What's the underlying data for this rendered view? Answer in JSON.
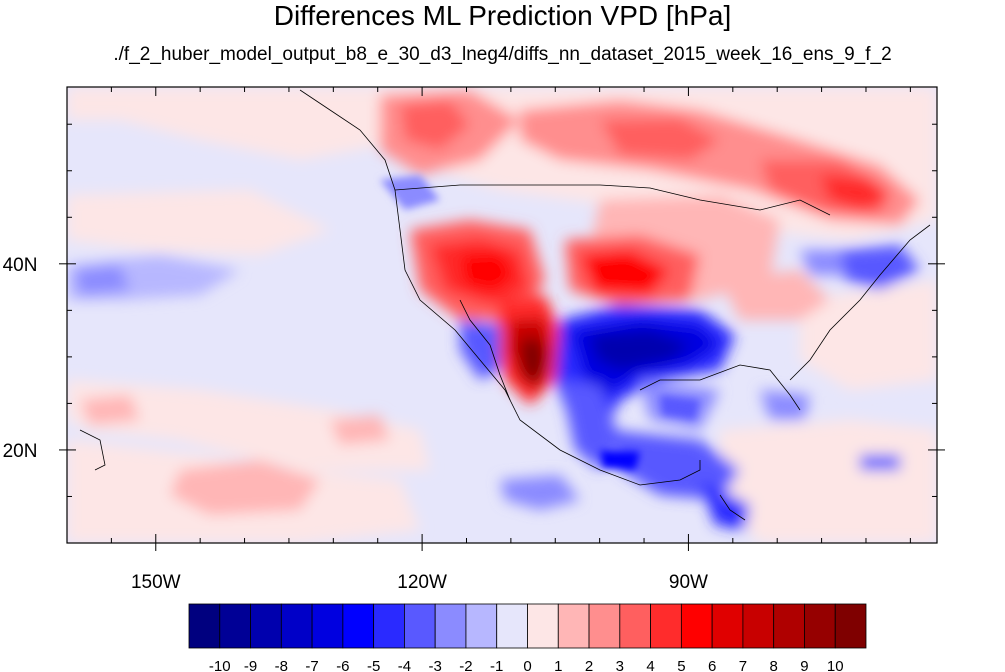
{
  "title": "Differences ML Prediction VPD [hPa]",
  "subtitle": "./f_2_huber_model_output_b8_e_30_d3_lneg4/diffs_nn_dataset_2015_week_16_ens_9_f_2",
  "map": {
    "lon_range": [
      -160,
      -62
    ],
    "lat_range": [
      10,
      59
    ],
    "x_ticks": [
      {
        "value": -150,
        "label": "150W"
      },
      {
        "value": -120,
        "label": "120W"
      },
      {
        "value": -90,
        "label": "90W"
      }
    ],
    "y_ticks": [
      {
        "value": 20,
        "label": "20N"
      },
      {
        "value": 40,
        "label": "40N"
      }
    ]
  },
  "colorbar": {
    "labels": [
      "-10",
      "-9",
      "-8",
      "-7",
      "-6",
      "-5",
      "-4",
      "-3",
      "-2",
      "-1",
      "0",
      "1",
      "2",
      "3",
      "4",
      "5",
      "6",
      "7",
      "8",
      "9",
      "10"
    ],
    "colors": [
      "#00007f",
      "#000096",
      "#0000ae",
      "#0000c8",
      "#0000e0",
      "#0000ff",
      "#2a2aff",
      "#5959ff",
      "#8b8bff",
      "#b7b7ff",
      "#e6e6fb",
      "#fde6e6",
      "#ffb6b6",
      "#ff8e8e",
      "#ff5f5f",
      "#ff2c2c",
      "#ff0000",
      "#e00000",
      "#c80000",
      "#af0000",
      "#960000",
      "#7f0000"
    ]
  }
}
